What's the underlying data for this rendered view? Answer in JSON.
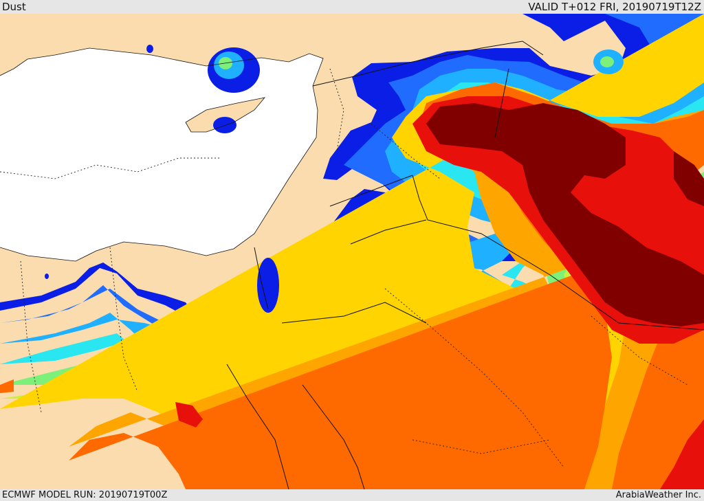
{
  "header": {
    "product": "Dust",
    "valid": "VALID T+012 FRI, 20190719T12Z"
  },
  "footer": {
    "model_run": "ECMWF MODEL RUN: 20190719T00Z",
    "credit": "ArabiaWeather Inc."
  },
  "palette": {
    "sea": "#ffffff",
    "land": "#fbdcae",
    "dust_levels": [
      "#0a1ee6",
      "#1f6cff",
      "#1fb0ff",
      "#29e6f0",
      "#7df07a",
      "#c8f03c",
      "#ffd400",
      "#ffa500",
      "#ff6a00",
      "#e8100a",
      "#800000"
    ]
  }
}
